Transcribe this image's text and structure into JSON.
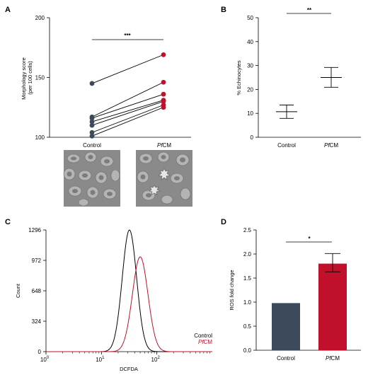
{
  "panels": {
    "A": "A",
    "B": "B",
    "C": "C",
    "D": "D"
  },
  "colors": {
    "control": "#3d4a5c",
    "pfcm": "#c0102b",
    "black": "#000000"
  },
  "chart_data": [
    {
      "id": "A",
      "type": "scatter",
      "subtype": "paired",
      "categories": [
        "Control",
        "PfCM"
      ],
      "ylabel": "Morphology score\n(per 100 cells)",
      "ylim": [
        100,
        200
      ],
      "yticks": [
        100,
        150,
        200
      ],
      "pairs": [
        [
          145,
          169
        ],
        [
          117,
          146
        ],
        [
          116,
          136
        ],
        [
          113,
          131
        ],
        [
          110,
          130
        ],
        [
          104,
          127
        ],
        [
          101,
          125
        ]
      ],
      "significance": "***"
    },
    {
      "id": "B",
      "type": "scatter",
      "subtype": "mean-error",
      "categories": [
        "Control",
        "PfCM"
      ],
      "ylabel": "% Echinocytes",
      "ylim": [
        0,
        50
      ],
      "yticks": [
        0,
        10,
        20,
        30,
        40,
        50
      ],
      "means": [
        10.7,
        25
      ],
      "upper": [
        13.5,
        29.2
      ],
      "lower": [
        7.9,
        20.9
      ],
      "significance": "**"
    },
    {
      "id": "C",
      "type": "line",
      "subtype": "histogram",
      "xlabel": "DCFDA",
      "ylabel": "Count",
      "xscale": "log",
      "xlim": [
        1,
        1000
      ],
      "xticks": [
        1,
        10,
        100
      ],
      "xtick_labels": [
        {
          "base": "10",
          "exp": "0"
        },
        {
          "base": "10",
          "exp": "1"
        },
        {
          "base": "10",
          "exp": "2"
        }
      ],
      "ylim": [
        0,
        1296
      ],
      "yticks": [
        0,
        324,
        648,
        972,
        1296
      ],
      "series": [
        {
          "name": "Control",
          "peak_x": 32,
          "peak_y": 1296,
          "sigma_log": 0.13
        },
        {
          "name": "PfCM",
          "peak_x": 50,
          "peak_y": 1010,
          "sigma_log": 0.14
        }
      ],
      "legend_position": "bottom-right"
    },
    {
      "id": "D",
      "type": "bar",
      "categories": [
        "Control",
        "PfCM"
      ],
      "ylabel": "ROS fold change",
      "ylim": [
        0,
        2.5
      ],
      "yticks": [
        "0.0",
        "0.5",
        "1.0",
        "1.5",
        "2.0",
        "2.5"
      ],
      "values": [
        0.98,
        1.8
      ],
      "error_upper": [
        null,
        2.01
      ],
      "error_lower": [
        null,
        1.63
      ],
      "significance": "*"
    }
  ]
}
